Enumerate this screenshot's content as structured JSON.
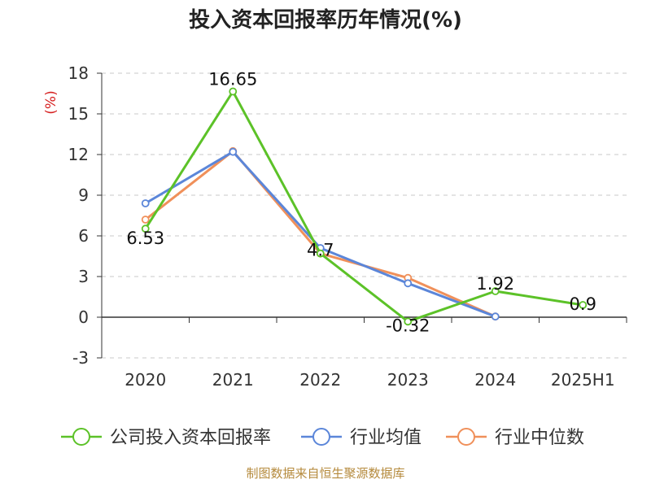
{
  "chart_data": {
    "type": "line",
    "title": "投入资本回报率历年情况(%)",
    "ylabel": "(%)",
    "categories": [
      "2020",
      "2021",
      "2022",
      "2023",
      "2024",
      "2025H1"
    ],
    "ylim": [
      -3,
      18
    ],
    "yticks": [
      -3,
      0,
      3,
      6,
      9,
      12,
      15,
      18
    ],
    "grid": true,
    "legend_position": "bottom",
    "series": [
      {
        "name": "公司投入资本回报率",
        "color": "#5cc228",
        "values": [
          6.53,
          16.65,
          4.7,
          -0.32,
          1.92,
          0.9
        ],
        "labels": [
          "6.53",
          "16.65",
          "4.7",
          "-0.32",
          "1.92",
          "0.9"
        ]
      },
      {
        "name": "行业均值",
        "color": "#5b86d9",
        "values": [
          8.4,
          12.2,
          5.1,
          2.5,
          0.05,
          null
        ]
      },
      {
        "name": "行业中位数",
        "color": "#f0905a",
        "values": [
          7.2,
          12.25,
          4.7,
          2.9,
          0.05,
          null
        ]
      }
    ]
  },
  "footer": "制图数据来自恒生聚源数据库"
}
